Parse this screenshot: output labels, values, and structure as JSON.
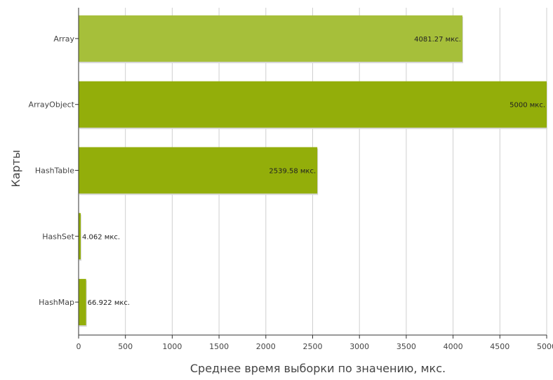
{
  "chart_data": {
    "type": "bar",
    "orientation": "horizontal",
    "xlabel": "Среднее время выборки по значению, мкс.",
    "ylabel": "Карты",
    "xlim": [
      0,
      5000
    ],
    "x_ticks": [
      "0",
      "500",
      "1000",
      "1500",
      "2000",
      "2500",
      "3000",
      "3500",
      "4000",
      "4500",
      "5000"
    ],
    "grid": "vertical",
    "categories": [
      "Array",
      "ArrayObject",
      "HashTable",
      "HashSet",
      "HashMap"
    ],
    "values": [
      4100,
      5000,
      2550,
      20,
      80
    ],
    "data_labels": [
      "4081.27 мкс.",
      "5000 мкс.",
      "2539.58 мкс.",
      "4.062 мкс.",
      "66.922 мкс."
    ],
    "colors": [
      "#a6bf3a",
      "#93ae0a",
      "#93ae0a",
      "#93ae0a",
      "#93ae0a"
    ]
  }
}
